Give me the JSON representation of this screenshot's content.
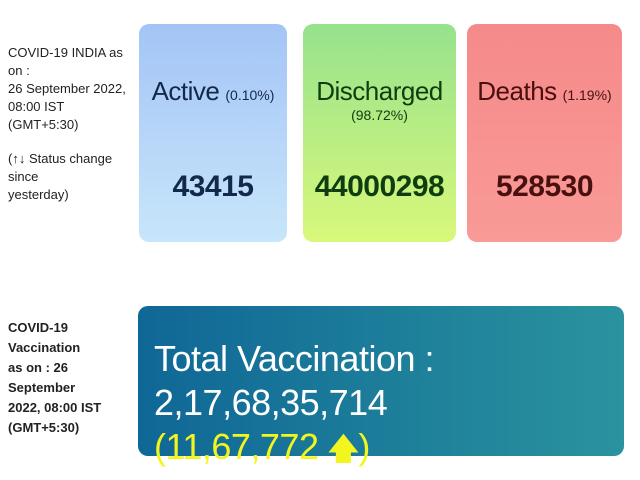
{
  "india_status": {
    "lines": [
      "COVID-19 INDIA as on :",
      "26 September 2022,",
      "08:00 IST (GMT+5:30)"
    ],
    "note_lines": [
      "(↑↓ Status change since",
      "yesterday)"
    ]
  },
  "cards": {
    "active": {
      "title": "Active",
      "percent": "(0.10%)",
      "value": "43415",
      "color": "#a4c4f6"
    },
    "discharged": {
      "title": "Discharged",
      "percent": "(98.72%)",
      "value": "44000298",
      "color": "#96e28d"
    },
    "deaths": {
      "title": "Deaths",
      "percent": "(1.19%)",
      "value": "528530",
      "color": "#f58a8a"
    }
  },
  "vaccination_status": {
    "lines": [
      "COVID-19 Vaccination",
      "as on : 26 September",
      "2022, 08:00 IST",
      "(GMT+5:30)"
    ]
  },
  "vaccination": {
    "label": "Total Vaccination : 2,17,68,35,714",
    "change_open": "(11,67,772",
    "arrow": "🡅",
    "change_close": ")",
    "arrow_icon": "arrow-up-icon",
    "change_color": "#f2f520"
  }
}
